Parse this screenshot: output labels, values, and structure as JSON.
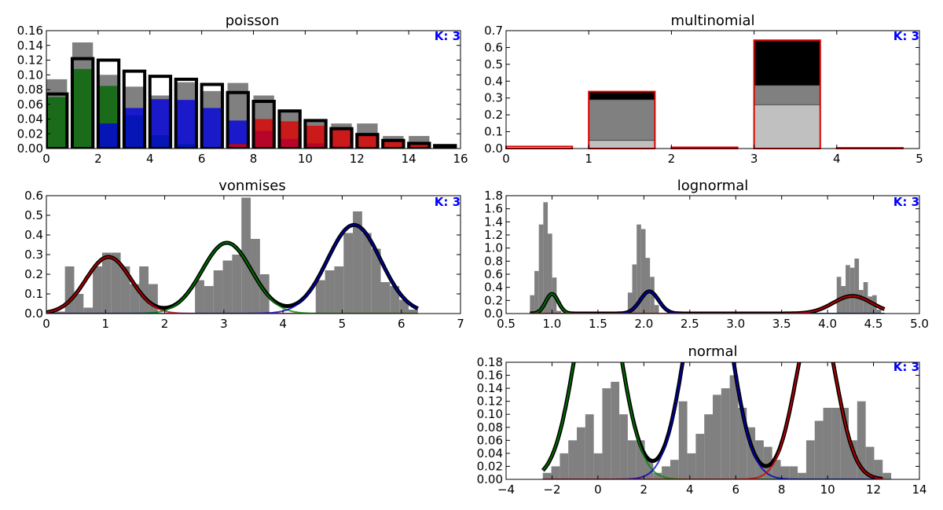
{
  "chart_data": [
    {
      "type": "bar",
      "title": "poisson",
      "annotation": "K: 3",
      "xlabel": "",
      "ylabel": "",
      "xlim": [
        0,
        16
      ],
      "ylim": [
        0,
        0.16
      ],
      "xticks": [
        "0",
        "2",
        "4",
        "6",
        "8",
        "10",
        "12",
        "14",
        "16"
      ],
      "yticks": [
        "0.00",
        "0.02",
        "0.04",
        "0.06",
        "0.08",
        "0.10",
        "0.12",
        "0.14",
        "0.16"
      ],
      "hist": {
        "x": [
          0,
          1,
          2,
          3,
          4,
          5,
          6,
          7,
          8,
          9,
          10,
          11,
          12,
          13,
          14
        ],
        "values": [
          0.094,
          0.144,
          0.1,
          0.084,
          0.072,
          0.09,
          0.078,
          0.089,
          0.072,
          0.05,
          0.038,
          0.034,
          0.034,
          0.017,
          0.017
        ]
      },
      "model": {
        "x": [
          0,
          1,
          2,
          3,
          4,
          5,
          6,
          7,
          8,
          9,
          10,
          11,
          12,
          13,
          14,
          15
        ],
        "values": [
          0.074,
          0.122,
          0.12,
          0.105,
          0.098,
          0.094,
          0.087,
          0.076,
          0.064,
          0.051,
          0.038,
          0.027,
          0.019,
          0.011,
          0.007,
          0.004
        ]
      },
      "series": [
        {
          "name": "",
          "color": "#006600",
          "values": [
            0.07,
            0.108,
            0.085,
            0.045,
            0.018,
            0.006,
            0.002,
            0,
            0,
            0,
            0,
            0,
            0,
            0,
            0
          ]
        },
        {
          "name": "",
          "color": "#0000dd",
          "values": [
            0,
            0,
            0.034,
            0.055,
            0.067,
            0.066,
            0.055,
            0.038,
            0.024,
            0.013,
            0.007,
            0.003,
            0.001,
            0,
            0
          ]
        },
        {
          "name": "",
          "color": "#dd0000",
          "values": [
            0,
            0,
            0,
            0,
            0,
            0.001,
            0.002,
            0.006,
            0.04,
            0.037,
            0.031,
            0.026,
            0.019,
            0.012,
            0.007
          ]
        }
      ]
    },
    {
      "type": "bar",
      "title": "multinomial",
      "annotation": "K: 3",
      "xlabel": "",
      "ylabel": "",
      "xlim": [
        0,
        5
      ],
      "ylim": [
        0,
        0.7
      ],
      "xticks": [
        "0",
        "1",
        "2",
        "3",
        "4",
        "5"
      ],
      "yticks": [
        "0.0",
        "0.1",
        "0.2",
        "0.3",
        "0.4",
        "0.5",
        "0.6",
        "0.7"
      ],
      "categories": [
        "0",
        "1",
        "2",
        "3",
        "4"
      ],
      "values": [
        0.012,
        0.338,
        0.007,
        0.643,
        0.004
      ],
      "stack": [
        {
          "name": "",
          "color": "#c0c0c0",
          "values": [
            0,
            0.048,
            0,
            0.26,
            0
          ]
        },
        {
          "name": "",
          "color": "#808080",
          "values": [
            0,
            0.29,
            0,
            0.375,
            0
          ]
        },
        {
          "name": "",
          "color": "#000000",
          "values": [
            0,
            0.338,
            0,
            0.643,
            0
          ]
        }
      ]
    },
    {
      "type": "line",
      "title": "vonmises",
      "annotation": "K: 3",
      "xlabel": "",
      "ylabel": "",
      "xlim": [
        0,
        7
      ],
      "ylim": [
        0,
        0.6
      ],
      "xticks": [
        "0",
        "1",
        "2",
        "3",
        "4",
        "5",
        "6",
        "7"
      ],
      "yticks": [
        "0.0",
        "0.1",
        "0.2",
        "0.3",
        "0.4",
        "0.5",
        "0.6"
      ],
      "hist": {
        "edges_start": 0,
        "bin_width": 0.157,
        "values": [
          0.01,
          0.01,
          0.24,
          0.1,
          0.03,
          0.24,
          0.31,
          0.31,
          0.24,
          0.15,
          0.24,
          0.15,
          0,
          0,
          0,
          0,
          0.17,
          0.14,
          0.22,
          0.27,
          0.3,
          0.59,
          0.38,
          0.2,
          0,
          0,
          0,
          0,
          0,
          0.17,
          0.22,
          0.24,
          0.41,
          0.52,
          0.41,
          0.33,
          0.16,
          0.14,
          0.07,
          0.02
        ]
      },
      "components": [
        {
          "name": "",
          "color": "#dd0000",
          "mu": 1.05,
          "sigma": 0.38,
          "weight": 0.288
        },
        {
          "name": "",
          "color": "#008800",
          "mu": 3.05,
          "sigma": 0.42,
          "weight": 0.36
        },
        {
          "name": "",
          "color": "#0000cc",
          "mu": 5.2,
          "sigma": 0.45,
          "weight": 0.451
        }
      ],
      "x_range": [
        0,
        6.28
      ],
      "mixture_color": "#000000"
    },
    {
      "type": "line",
      "title": "lognormal",
      "annotation": "K: 3",
      "xlabel": "",
      "ylabel": "",
      "xlim": [
        0.5,
        5.0
      ],
      "ylim": [
        0,
        1.8
      ],
      "xticks": [
        "0.5",
        "1.0",
        "1.5",
        "2.0",
        "2.5",
        "3.0",
        "3.5",
        "4.0",
        "4.5",
        "5.0"
      ],
      "yticks": [
        "0.0",
        "0.2",
        "0.4",
        "0.6",
        "0.8",
        "1.0",
        "1.2",
        "1.4",
        "1.6",
        "1.8"
      ],
      "hist": {
        "edges_start": 0.76,
        "bin_width": 0.0484,
        "values": [
          0.28,
          0.65,
          1.36,
          1.7,
          1.22,
          0.55,
          0.04,
          0,
          0,
          0,
          0,
          0,
          0,
          0,
          0,
          0,
          0,
          0,
          0,
          0,
          0,
          0,
          0.32,
          0.75,
          1.36,
          1.29,
          0.85,
          0.56,
          0.13,
          0,
          0,
          0,
          0,
          0,
          0,
          0,
          0,
          0,
          0,
          0,
          0,
          0,
          0,
          0,
          0,
          0,
          0,
          0,
          0,
          0,
          0,
          0,
          0,
          0,
          0,
          0,
          0,
          0,
          0,
          0,
          0,
          0,
          0,
          0,
          0,
          0,
          0,
          0,
          0,
          0.56,
          0.42,
          0.74,
          0.7,
          0.84,
          0.36,
          0.48,
          0.26,
          0.28,
          0.06
        ]
      },
      "components": [
        {
          "name": "",
          "color": "#008800",
          "mu": 1.0,
          "sigma": 0.068,
          "weight": 0.3
        },
        {
          "name": "",
          "color": "#0000cc",
          "mu": 2.06,
          "sigma": 0.1,
          "weight": 0.338
        },
        {
          "name": "",
          "color": "#dd0000",
          "mu": 4.27,
          "sigma": 0.21,
          "weight": 0.268
        }
      ],
      "x_range": [
        0.76,
        4.62
      ],
      "mixture_color": "#000000"
    },
    {
      "type": "line",
      "title": "normal",
      "annotation": "K: 3",
      "xlabel": "",
      "ylabel": "",
      "xlim": [
        -4,
        14
      ],
      "ylim": [
        0,
        0.18
      ],
      "xticks": [
        "−4",
        "−2",
        "0",
        "2",
        "4",
        "6",
        "8",
        "10",
        "12",
        "14"
      ],
      "yticks": [
        "0.00",
        "0.02",
        "0.04",
        "0.06",
        "0.08",
        "0.10",
        "0.12",
        "0.14",
        "0.16",
        "0.18"
      ],
      "hist": {
        "edges_start": -2.4,
        "bin_width": 0.37,
        "values": [
          0.01,
          0.02,
          0.04,
          0.06,
          0.08,
          0.1,
          0.04,
          0.14,
          0.15,
          0.1,
          0.06,
          0.06,
          0.03,
          0.01,
          0.02,
          0.03,
          0.12,
          0.04,
          0.07,
          0.1,
          0.13,
          0.14,
          0.16,
          0.11,
          0.08,
          0.06,
          0.05,
          0.03,
          0.02,
          0.02,
          0.01,
          0.06,
          0.09,
          0.11,
          0.11,
          0.11,
          0.06,
          0.12,
          0.05,
          0.03,
          0.01
        ]
      },
      "components": [
        {
          "name": "",
          "color": "#008800",
          "mu": 0.0,
          "sigma": 0.95,
          "weight": 0.333
        },
        {
          "name": "",
          "color": "#0000cc",
          "mu": 4.8,
          "sigma": 0.95,
          "weight": 0.357
        },
        {
          "name": "",
          "color": "#dd0000",
          "mu": 9.5,
          "sigma": 0.85,
          "weight": 0.262
        }
      ],
      "x_range": [
        -2.4,
        12.4
      ],
      "mixture_color": "#000000"
    }
  ]
}
